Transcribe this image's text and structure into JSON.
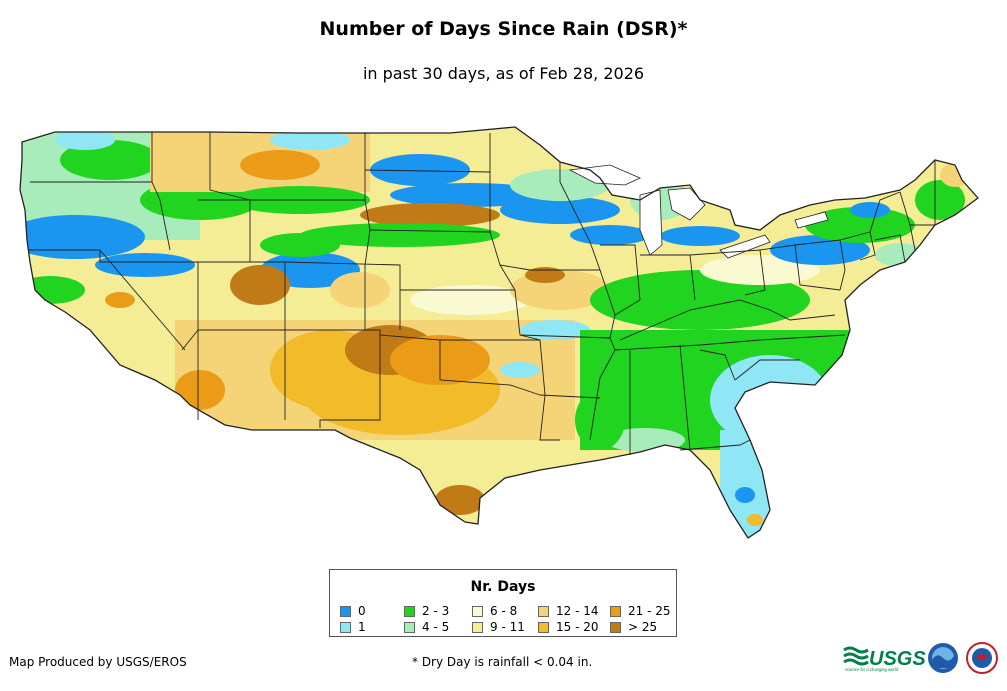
{
  "title": "Number of Days Since Rain (DSR)*",
  "subtitle": "in past 30 days, as of Feb 28, 2026",
  "legend": {
    "title": "Nr. Days",
    "items": [
      {
        "label": "0",
        "color": "#1a96f0"
      },
      {
        "label": "1",
        "color": "#8fe6f5"
      },
      {
        "label": "2 - 3",
        "color": "#20d420"
      },
      {
        "label": "4 - 5",
        "color": "#a8ecbc"
      },
      {
        "label": "6 - 8",
        "color": "#fafad2"
      },
      {
        "label": "9 - 11",
        "color": "#f5ec96"
      },
      {
        "label": "12 - 14",
        "color": "#f5d478"
      },
      {
        "label": "15 - 20",
        "color": "#f2bb2a"
      },
      {
        "label": "21 - 25",
        "color": "#ea9c18"
      },
      {
        "label": "> 25",
        "color": "#c07a16"
      }
    ]
  },
  "credit": "Map Produced by USGS/EROS",
  "footnote": "* Dry Day is rainfall < 0.04 in.",
  "logos": {
    "usgs": {
      "text": "USGS",
      "tagline": "science for a changing world"
    },
    "noaa": {
      "icon": "noaa-logo"
    },
    "nws": {
      "icon": "nws-logo"
    }
  }
}
